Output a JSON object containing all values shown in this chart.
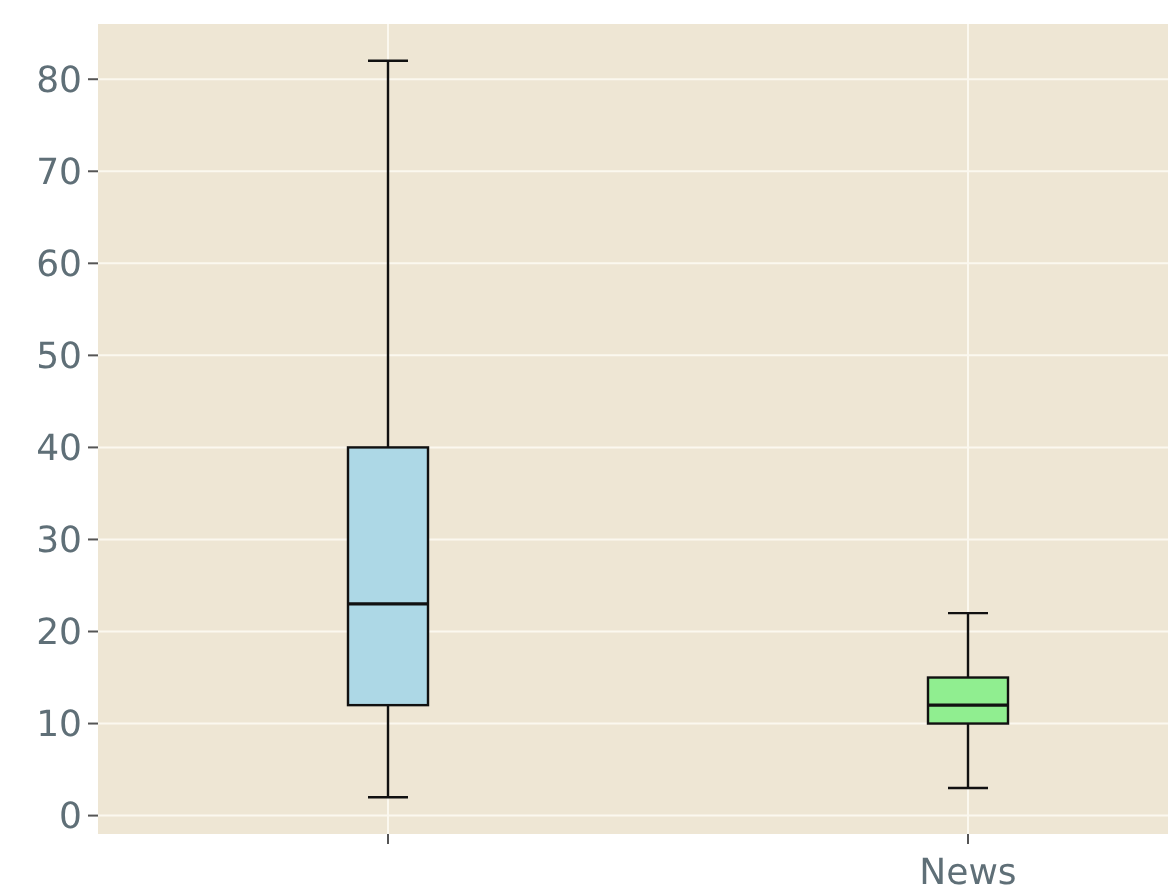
{
  "chart_data": {
    "type": "box",
    "categories": [
      null,
      "News"
    ],
    "colors": [
      "#add8e6",
      "#90ee90"
    ],
    "boxes": [
      {
        "low": 2,
        "q1": 12,
        "median": 23,
        "q3": 40,
        "high": 82
      },
      {
        "low": 3,
        "q1": 10,
        "median": 12,
        "q3": 15,
        "high": 22
      }
    ],
    "ylim": [
      -2,
      86
    ],
    "yticks": [
      0,
      10,
      20,
      30,
      40,
      50,
      60,
      70,
      80
    ],
    "grid": true
  }
}
